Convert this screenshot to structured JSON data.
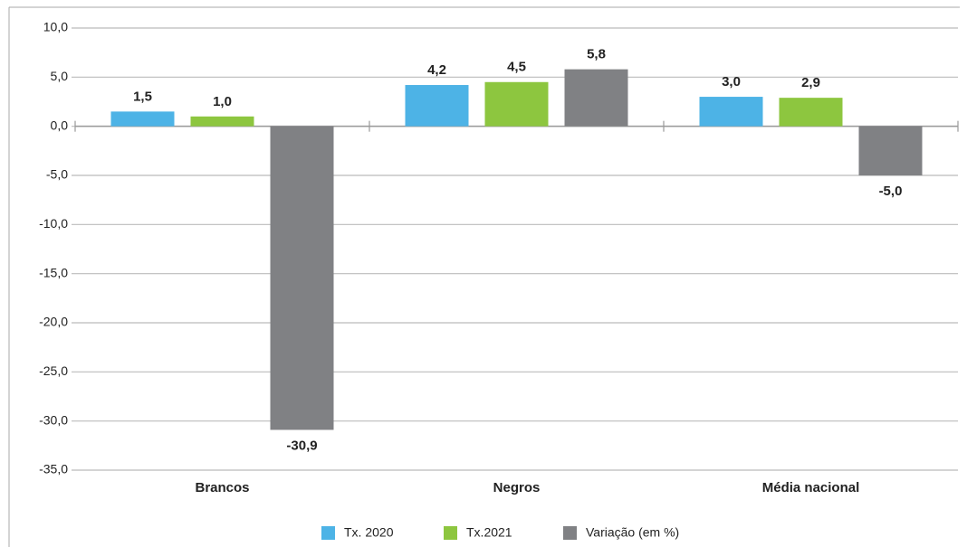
{
  "chart_data": {
    "type": "bar",
    "categories": [
      "Brancos",
      "Negros",
      "Média nacional"
    ],
    "series": [
      {
        "name": "Tx. 2020",
        "color": "#4db3e6",
        "values": [
          1.5,
          4.2,
          3.0
        ],
        "value_labels": [
          "1,5",
          "4,2",
          "3,0"
        ]
      },
      {
        "name": "Tx.2021",
        "color": "#8dc63f",
        "values": [
          1.0,
          4.5,
          2.9
        ],
        "value_labels": [
          "1,0",
          "4,5",
          "2,9"
        ]
      },
      {
        "name": "Variação (em %)",
        "color": "#808184",
        "values": [
          -30.9,
          5.8,
          -5.0
        ],
        "value_labels": [
          "-30,9",
          "5,8",
          "-5,0"
        ]
      }
    ],
    "ylim": [
      -35,
      10
    ],
    "yticks": [
      {
        "value": 10,
        "label": "10,0"
      },
      {
        "value": 5,
        "label": "5,0"
      },
      {
        "value": 0,
        "label": "0,0"
      },
      {
        "value": -5,
        "label": "-5,0"
      },
      {
        "value": -10,
        "label": "-10,0"
      },
      {
        "value": -15,
        "label": "-15,0"
      },
      {
        "value": -20,
        "label": "-20,0"
      },
      {
        "value": -25,
        "label": "-25,0"
      },
      {
        "value": -30,
        "label": "-30,0"
      },
      {
        "value": -35,
        "label": "-35,0"
      }
    ],
    "grid": true,
    "legend": "bottom"
  }
}
